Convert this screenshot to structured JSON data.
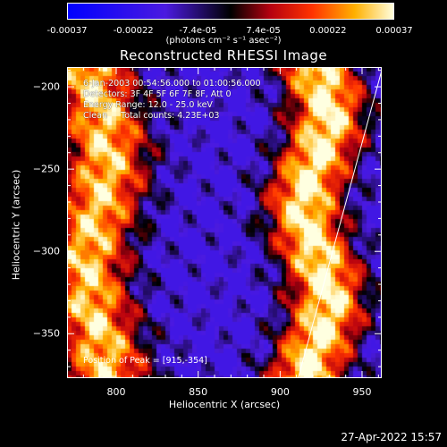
{
  "chart_data": {
    "type": "heatmap",
    "title": "Reconstructed RHESSI Image",
    "xlabel": "Heliocentric X (arcsec)",
    "ylabel": "Heliocentric Y (arcsec)",
    "xlim": [
      770,
      962
    ],
    "ylim": [
      -377,
      -188
    ],
    "x_ticks": [
      "800",
      "850",
      "900",
      "950"
    ],
    "x_tick_values": [
      800,
      850,
      900,
      950
    ],
    "y_ticks": [
      "-200",
      "-250",
      "-300",
      "-350"
    ],
    "y_tick_values": [
      -200,
      -250,
      -300,
      -350
    ],
    "colorbar": {
      "min": -0.00037,
      "max": 0.00037,
      "tick_labels": [
        "-0.00037",
        "-0.00022",
        "-7.4e-05",
        "7.4e-05",
        "0.00022",
        "0.00037"
      ],
      "tick_values": [
        -0.00037,
        -0.00022,
        -7.4e-05,
        7.4e-05,
        0.00022,
        0.00037
      ],
      "units": "(photons cm⁻² s⁻¹ asec⁻²)"
    },
    "annotation_lines": [
      "6-Jan-2003 00:54:56.000 to 01:00:56.000",
      "Detectors: 3F 4F 5F 6F 7F 8F, Att 0",
      "Energy Range: 12.0 - 25.0 keV",
      "Clean     Total counts: 4.23E+03"
    ],
    "peak_label": "Position of Peak = [915,-354]",
    "peak": [
      915,
      -354
    ],
    "limb_line": [
      [
        911,
        -377
      ],
      [
        962,
        -190
      ]
    ]
  },
  "timestamp": "27-Apr-2022 15:57"
}
